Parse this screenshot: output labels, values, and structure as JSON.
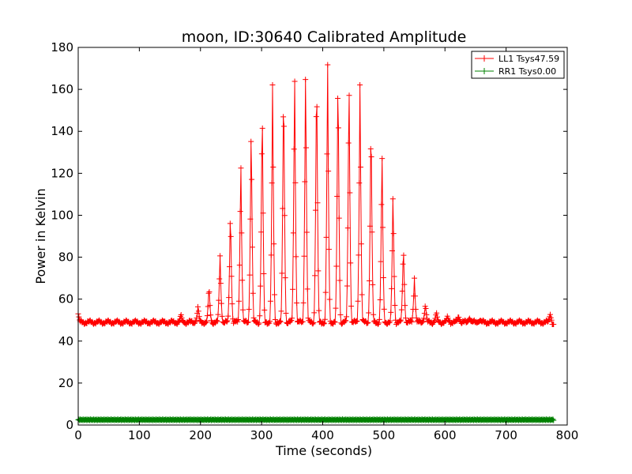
{
  "chart_data": {
    "type": "line",
    "title": "moon, ID:30640 Calibrated Amplitude",
    "xlabel": "Time (seconds)",
    "ylabel": "Power in Kelvin",
    "xlim": [
      0,
      800
    ],
    "ylim": [
      0,
      180
    ],
    "xticks": [
      0,
      100,
      200,
      300,
      400,
      500,
      600,
      700,
      800
    ],
    "yticks": [
      0,
      20,
      40,
      60,
      80,
      100,
      120,
      140,
      160,
      180
    ],
    "legend_position": "top-right",
    "grid": false,
    "series": [
      {
        "name": "LL1 Tsys47.59",
        "color": "#ff0000",
        "marker": "plus",
        "baseline": 49,
        "x_range": [
          0,
          778
        ],
        "start_value": 53,
        "end_value": 48,
        "peaks": [
          {
            "x": 168,
            "y": 53
          },
          {
            "x": 196,
            "y": 57
          },
          {
            "x": 214,
            "y": 67
          },
          {
            "x": 232,
            "y": 82
          },
          {
            "x": 249,
            "y": 105
          },
          {
            "x": 266,
            "y": 129
          },
          {
            "x": 283,
            "y": 147
          },
          {
            "x": 301,
            "y": 159
          },
          {
            "x": 318,
            "y": 167
          },
          {
            "x": 336,
            "y": 171
          },
          {
            "x": 354,
            "y": 174
          },
          {
            "x": 372,
            "y": 175
          },
          {
            "x": 390,
            "y": 177
          },
          {
            "x": 408,
            "y": 177
          },
          {
            "x": 425,
            "y": 176
          },
          {
            "x": 443,
            "y": 172
          },
          {
            "x": 461,
            "y": 167
          },
          {
            "x": 479,
            "y": 152
          },
          {
            "x": 497,
            "y": 134
          },
          {
            "x": 515,
            "y": 113
          },
          {
            "x": 532,
            "y": 87
          },
          {
            "x": 550,
            "y": 70
          },
          {
            "x": 568,
            "y": 58
          },
          {
            "x": 586,
            "y": 54
          },
          {
            "x": 604,
            "y": 52
          },
          {
            "x": 622,
            "y": 52
          },
          {
            "x": 640,
            "y": 51
          },
          {
            "x": 658,
            "y": 50
          },
          {
            "x": 772,
            "y": 53
          }
        ]
      },
      {
        "name": "RR1 Tsys0.00",
        "color": "#008000",
        "marker": "plus",
        "baseline": 2.5,
        "x_range": [
          0,
          778
        ]
      }
    ]
  }
}
